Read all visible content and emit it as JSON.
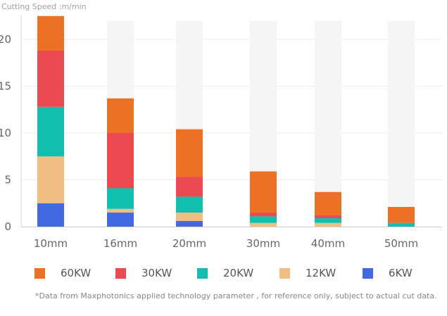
{
  "ytitle": "Cutting  Speed :m/min",
  "footnote": "*Data from Maxphotonics applied technology parameter ,  for reference only, subject to actual cut data.",
  "chart_data": {
    "type": "bar",
    "stacked": true,
    "ylabel": "Cutting  Speed :m/min",
    "ylim": [
      0,
      22
    ],
    "yticks": [
      0,
      5,
      10,
      15,
      20
    ],
    "categories": [
      "10mm",
      "16mm",
      "20mm",
      "30mm",
      "40mm",
      "50mm"
    ],
    "series": [
      {
        "name": "6KW",
        "color": "#4169e1",
        "values": [
          2.5,
          1.5,
          0.6,
          0,
          0,
          0
        ]
      },
      {
        "name": "12KW",
        "color": "#f0be82",
        "values": [
          5.0,
          0.4,
          0.9,
          0.4,
          0.4,
          0
        ]
      },
      {
        "name": "20KW",
        "color": "#12bfae",
        "values": [
          5.3,
          2.2,
          1.7,
          0.7,
          0.5,
          0.4
        ]
      },
      {
        "name": "30KW",
        "color": "#ec4a52",
        "values": [
          6.0,
          5.9,
          2.1,
          0.4,
          0.3,
          0
        ]
      },
      {
        "name": "60KW",
        "color": "#ed7124",
        "values": [
          3.7,
          3.7,
          5.1,
          4.4,
          2.5,
          1.7
        ]
      }
    ],
    "background_bar_value": 22,
    "grid": true,
    "legend": "bottom",
    "legend_order": [
      "60KW",
      "30KW",
      "20KW",
      "12KW",
      "6KW"
    ]
  }
}
